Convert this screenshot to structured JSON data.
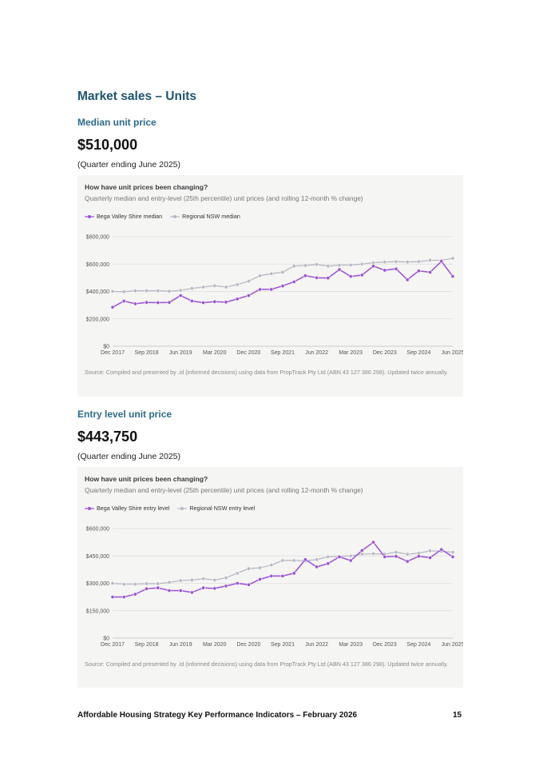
{
  "section_title": "Market sales – Units",
  "median": {
    "heading": "Median unit price",
    "value": "$510,000",
    "period": "(Quarter ending June 2025)"
  },
  "entry": {
    "heading": "Entry level unit price",
    "value": "$443,750",
    "period": "(Quarter ending June 2025)"
  },
  "colors": {
    "local": "#9b4fd1",
    "regional": "#b8b8c4"
  },
  "chart_data": [
    {
      "type": "line",
      "title": "How have unit prices been changing?",
      "subtitle": "Quarterly median and entry-level (25th percentile) unit prices (and rolling 12-month % change)",
      "x_tick_labels": [
        "Dec 2017",
        "Sep 2018",
        "Jun 2019",
        "Mar 2020",
        "Dec 2020",
        "Sep 2021",
        "Jun 2022",
        "Mar 2023",
        "Dec 2023",
        "Sep 2024",
        "Jun 2025"
      ],
      "y_tick_labels": [
        "$800,000",
        "$600,000",
        "$400,000",
        "$200,000",
        "$0"
      ],
      "ylim": [
        0,
        800000
      ],
      "y_ticks": [
        0,
        200000,
        400000,
        600000,
        800000
      ],
      "series": [
        {
          "name": "Bega Valley Shire median",
          "values": [
            285000,
            330000,
            310000,
            320000,
            318000,
            320000,
            370000,
            330000,
            318000,
            325000,
            322000,
            345000,
            370000,
            415000,
            415000,
            440000,
            470000,
            515000,
            500000,
            498000,
            560000,
            510000,
            520000,
            585000,
            555000,
            565000,
            485000,
            550000,
            540000,
            620000,
            510000
          ]
        },
        {
          "name": "Regional NSW median",
          "values": [
            400000,
            398000,
            405000,
            405000,
            405000,
            402000,
            408000,
            422000,
            432000,
            442000,
            432000,
            450000,
            475000,
            515000,
            530000,
            540000,
            585000,
            590000,
            597000,
            585000,
            592000,
            593000,
            600000,
            610000,
            615000,
            618000,
            615000,
            618000,
            628000,
            628000,
            642000
          ]
        }
      ],
      "source": "Source: Compiled and presented by .id (informed decisions) using data from PropTrack Pty Ltd (ABN 43 127 386 298). Updated twice annually."
    },
    {
      "type": "line",
      "title": "How have unit prices been changing?",
      "subtitle": "Quarterly median and entry-level (25th percentile) unit prices (and rolling 12-month % change)",
      "x_tick_labels": [
        "Dec 2017",
        "Sep 2018",
        "Jun 2019",
        "Mar 2020",
        "Dec 2020",
        "Sep 2021",
        "Jun 2022",
        "Mar 2023",
        "Dec 2023",
        "Sep 2024",
        "Jun 2025"
      ],
      "y_tick_labels": [
        "$600,000",
        "$450,000",
        "$300,000",
        "$150,000",
        "$0"
      ],
      "ylim": [
        0,
        600000
      ],
      "y_ticks": [
        0,
        150000,
        300000,
        450000,
        600000
      ],
      "series": [
        {
          "name": "Bega Valley Shire entry level",
          "values": [
            225000,
            225000,
            240000,
            270000,
            275000,
            260000,
            260000,
            250000,
            275000,
            272000,
            285000,
            300000,
            292000,
            322000,
            340000,
            340000,
            355000,
            430000,
            390000,
            408000,
            445000,
            425000,
            480000,
            525000,
            445000,
            448000,
            420000,
            448000,
            440000,
            485000,
            445000
          ]
        },
        {
          "name": "Regional NSW entry level",
          "values": [
            300000,
            295000,
            295000,
            298000,
            298000,
            305000,
            315000,
            318000,
            325000,
            318000,
            330000,
            355000,
            380000,
            385000,
            400000,
            425000,
            425000,
            423000,
            430000,
            445000,
            448000,
            450000,
            460000,
            462000,
            460000,
            470000,
            460000,
            465000,
            478000,
            475000,
            470000
          ]
        }
      ],
      "source": "Source: Compiled and presented by .id (informed decisions) using data from PropTrack Pty Ltd (ABN 43 127 386 298). Updated twice annually."
    }
  ],
  "footer": {
    "text": "Affordable Housing Strategy Key Performance Indicators – February 2026",
    "page": "15"
  }
}
